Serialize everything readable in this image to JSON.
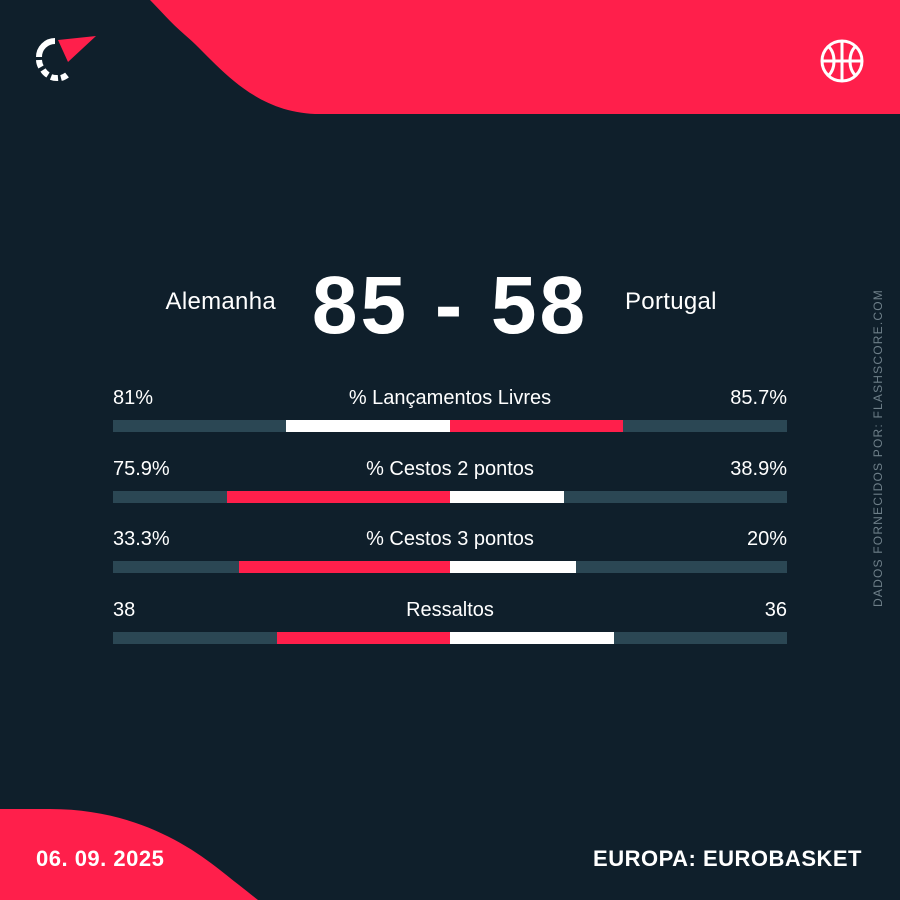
{
  "colors": {
    "background": "#0f1f2b",
    "accent": "#ff1f4b",
    "track": "#2b4754",
    "text": "#ffffff",
    "muted": "#6e7f89"
  },
  "icons": {
    "brand_logo": "flashscore-logo",
    "sport": "basketball-icon"
  },
  "match": {
    "home_team": "Alemanha",
    "away_team": "Portugal",
    "score": "85 - 58"
  },
  "stats": [
    {
      "label": "% Lançamentos Livres",
      "home": "81%",
      "away": "85.7%",
      "home_share": 0.486,
      "away_share": 0.514,
      "home_color": "white",
      "away_color": "red"
    },
    {
      "label": "% Cestos 2 pontos",
      "home": "75.9%",
      "away": "38.9%",
      "home_share": 0.661,
      "away_share": 0.339,
      "home_color": "red",
      "away_color": "white"
    },
    {
      "label": "% Cestos 3 pontos",
      "home": "33.3%",
      "away": "20%",
      "home_share": 0.625,
      "away_share": 0.375,
      "home_color": "red",
      "away_color": "white"
    },
    {
      "label": "Ressaltos",
      "home": "38",
      "away": "36",
      "home_share": 0.514,
      "away_share": 0.486,
      "home_color": "red",
      "away_color": "white"
    }
  ],
  "credit": "DADOS FORNECIDOS POR: FLASHSCORE.COM",
  "footer": {
    "date": "06. 09. 2025",
    "competition": "EUROPA: EUROBASKET"
  }
}
